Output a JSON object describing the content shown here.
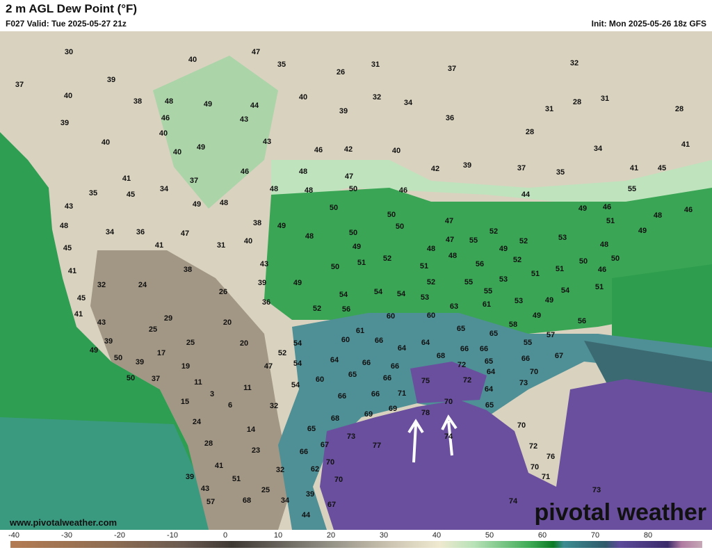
{
  "header": {
    "title": "2 m AGL Dew Point (°F)",
    "valid": "F027 Valid: Tue 2025-05-27 21z",
    "init": "Init: Mon 2025-05-26 18z GFS"
  },
  "map": {
    "labels": [
      30,
      47,
      35,
      26,
      31,
      37,
      32,
      40,
      39,
      37,
      40,
      38,
      48,
      49,
      44,
      40,
      32,
      34,
      31,
      28,
      31,
      28,
      39,
      46,
      43,
      39,
      36,
      28,
      40,
      40,
      43,
      46,
      42,
      40,
      34,
      41,
      40,
      49,
      42,
      39,
      37,
      35,
      41,
      45,
      46,
      48,
      47,
      41,
      37,
      34,
      35,
      45,
      48,
      48,
      50,
      46,
      44,
      55,
      43,
      49,
      48,
      50,
      50,
      49,
      46,
      48,
      46,
      48,
      34,
      36,
      47,
      38,
      49,
      48,
      50,
      50,
      47,
      52,
      51,
      49,
      45,
      41,
      31,
      40,
      49,
      52,
      51,
      48,
      47,
      55,
      49,
      52,
      53,
      48,
      41,
      38,
      43,
      50,
      51,
      48,
      56,
      52,
      51,
      50,
      50,
      32,
      24,
      26,
      39,
      49,
      54,
      54,
      54,
      52,
      55,
      55,
      53,
      51,
      46,
      51,
      45,
      36,
      52,
      56,
      53,
      63,
      61,
      53,
      49,
      54,
      41,
      29,
      20,
      60,
      60,
      49,
      56,
      43,
      25,
      61,
      65,
      65,
      58,
      57,
      39,
      25,
      20,
      54,
      60,
      66,
      64,
      64,
      55,
      66,
      49,
      50,
      17,
      52,
      64,
      66,
      68,
      66,
      72,
      65,
      67,
      66,
      39,
      19,
      47,
      54,
      65,
      66,
      70,
      50,
      37,
      11,
      11,
      54,
      60,
      66,
      75,
      72,
      64,
      73,
      3,
      66,
      66,
      71,
      15,
      6,
      32,
      64,
      70,
      65,
      69,
      69,
      78,
      24,
      65,
      68,
      73,
      14,
      70,
      67,
      77,
      74,
      28,
      23,
      66,
      72,
      70,
      76,
      70,
      41,
      32,
      62,
      71,
      39,
      51,
      70,
      25,
      73,
      43,
      39,
      34,
      74,
      57,
      68,
      67,
      44
    ]
  },
  "colorbar": {
    "ticks": [
      -40,
      -30,
      -20,
      -10,
      0,
      10,
      20,
      30,
      40,
      50,
      60,
      70,
      80
    ]
  },
  "footer": {
    "url": "www.pivotalweather.com",
    "brand": "pivotal weather"
  }
}
